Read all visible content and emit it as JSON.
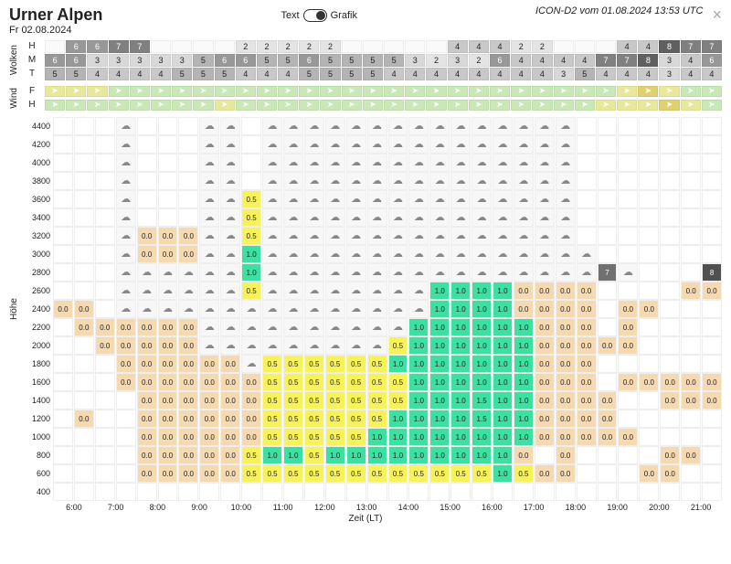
{
  "title": "Urner Alpen",
  "date": "Fr 02.08.2024",
  "mode": {
    "text_label": "Text",
    "grafik_label": "Grafik"
  },
  "source": "ICON-D2 vom 01.08.2024 13:53 UTC",
  "sections": {
    "wolken": "Wolken",
    "wind": "Wind",
    "hoehe": "Höhe"
  },
  "axis": {
    "x_title": "Zeit (LT)"
  },
  "n_time_cols": 32,
  "cloud_grey_shades": [
    "#fafafa",
    "#f0f0f0",
    "#e4e4e4",
    "#d8d8d8",
    "#c8c8c8",
    "#b4b4b4",
    "#989898",
    "#808080",
    "#606060"
  ],
  "cloud_rows": [
    {
      "label": "H",
      "vals": [
        "",
        "6",
        "6",
        "7",
        "7",
        "",
        "",
        "",
        "",
        "2",
        "2",
        "2",
        "2",
        "2",
        "",
        "",
        "",
        "",
        "",
        "4",
        "4",
        "4",
        "2",
        "2",
        "",
        "",
        "",
        "4",
        "4",
        "8",
        "7",
        "7"
      ]
    },
    {
      "label": "M",
      "vals": [
        "6",
        "6",
        "3",
        "3",
        "3",
        "3",
        "3",
        "5",
        "6",
        "6",
        "5",
        "5",
        "6",
        "5",
        "5",
        "5",
        "5",
        "3",
        "2",
        "3",
        "2",
        "6",
        "4",
        "4",
        "4",
        "4",
        "7",
        "7",
        "8",
        "3",
        "4",
        "6"
      ]
    },
    {
      "label": "T",
      "vals": [
        "5",
        "5",
        "4",
        "4",
        "4",
        "4",
        "5",
        "5",
        "5",
        "4",
        "4",
        "4",
        "5",
        "5",
        "5",
        "5",
        "4",
        "4",
        "4",
        "4",
        "4",
        "4",
        "4",
        "4",
        "3",
        "5",
        "4",
        "4",
        "4",
        "3",
        "4",
        "4"
      ]
    }
  ],
  "wind_colors": {
    "light": "#c9e8b5",
    "med": "#e8e89a",
    "strong": "#e0d070"
  },
  "wind_rows": [
    {
      "label": "F",
      "cells": [
        "med",
        "med",
        "med",
        "light",
        "light",
        "light",
        "light",
        "light",
        "light",
        "light",
        "light",
        "light",
        "light",
        "light",
        "light",
        "light",
        "light",
        "light",
        "light",
        "light",
        "light",
        "light",
        "light",
        "light",
        "light",
        "light",
        "light",
        "med",
        "strong",
        "med",
        "light",
        "light"
      ]
    },
    {
      "label": "H",
      "cells": [
        "light",
        "light",
        "light",
        "light",
        "light",
        "light",
        "light",
        "light",
        "med",
        "light",
        "light",
        "light",
        "light",
        "light",
        "light",
        "light",
        "light",
        "light",
        "light",
        "light",
        "light",
        "light",
        "light",
        "light",
        "light",
        "light",
        "med",
        "med",
        "med",
        "strong",
        "med",
        "light"
      ]
    }
  ],
  "heights": [
    4400,
    4200,
    4000,
    3800,
    3600,
    3400,
    3200,
    3000,
    2800,
    2600,
    2400,
    2200,
    2000,
    1800,
    1600,
    1400,
    1200,
    1000,
    800,
    600,
    400
  ],
  "x_hours": [
    "6:00",
    "7:00",
    "8:00",
    "9:00",
    "10:00",
    "11:00",
    "12:00",
    "13:00",
    "14:00",
    "15:00",
    "16:00",
    "17:00",
    "18:00",
    "19:00",
    "20:00",
    "21:00"
  ],
  "colors": {
    "beige": "#f5d9b0",
    "yellow": "#f7f25a",
    "green": "#3ce0a0",
    "grey_dark": "#707070",
    "grey_darker": "#505050",
    "white": "#ffffff",
    "cloud": "#f7f7f7"
  },
  "grid": [
    [
      " ",
      " ",
      " ",
      "C",
      " ",
      " ",
      " ",
      "C",
      "C",
      " ",
      "C",
      "C",
      "C",
      "C",
      "C",
      "C",
      "C",
      "C",
      "C",
      "C",
      "C",
      "C",
      "C",
      "C",
      "C",
      " ",
      " ",
      " ",
      " ",
      " ",
      " ",
      " "
    ],
    [
      " ",
      " ",
      " ",
      "C",
      " ",
      " ",
      " ",
      "C",
      "C",
      " ",
      "C",
      "C",
      "C",
      "C",
      "C",
      "C",
      "C",
      "C",
      "C",
      "C",
      "C",
      "C",
      "C",
      "C",
      "C",
      " ",
      " ",
      " ",
      " ",
      " ",
      " ",
      " "
    ],
    [
      " ",
      " ",
      " ",
      "C",
      " ",
      " ",
      " ",
      "C",
      "C",
      " ",
      "C",
      "C",
      "C",
      "C",
      "C",
      "C",
      "C",
      "C",
      "C",
      "C",
      "C",
      "C",
      "C",
      "C",
      "C",
      " ",
      " ",
      " ",
      " ",
      " ",
      " ",
      " "
    ],
    [
      " ",
      " ",
      " ",
      "C",
      " ",
      " ",
      " ",
      "C",
      "C",
      " ",
      "C",
      "C",
      "C",
      "C",
      "C",
      "C",
      "C",
      "C",
      "C",
      "C",
      "C",
      "C",
      "C",
      "C",
      "C",
      " ",
      " ",
      " ",
      " ",
      " ",
      " ",
      " "
    ],
    [
      " ",
      " ",
      " ",
      "C",
      " ",
      " ",
      " ",
      "C",
      "C",
      "y0.5",
      "C",
      "C",
      "C",
      "C",
      "C",
      "C",
      "C",
      "C",
      "C",
      "C",
      "C",
      "C",
      "C",
      "C",
      "C",
      " ",
      " ",
      " ",
      " ",
      " ",
      " ",
      " "
    ],
    [
      " ",
      " ",
      " ",
      "C",
      " ",
      " ",
      " ",
      "C",
      "C",
      "y0.5",
      "C",
      "C",
      "C",
      "C",
      "C",
      "C",
      "C",
      "C",
      "C",
      "C",
      "C",
      "C",
      "C",
      "C",
      "C",
      " ",
      " ",
      " ",
      " ",
      " ",
      " ",
      " "
    ],
    [
      " ",
      " ",
      " ",
      "C",
      "b0.0",
      "b0.0",
      "b0.0",
      "C",
      "C",
      "y0.5",
      "C",
      "C",
      "C",
      "C",
      "C",
      "C",
      "C",
      "C",
      "C",
      "C",
      "C",
      "C",
      "C",
      "C",
      "C",
      " ",
      " ",
      " ",
      " ",
      " ",
      " ",
      " "
    ],
    [
      " ",
      " ",
      " ",
      "C",
      "b0.0",
      "b0.0",
      "b0.0",
      "C",
      "C",
      "g1.0",
      "C",
      "C",
      "C",
      "C",
      "C",
      "C",
      "C",
      "C",
      "C",
      "C",
      "C",
      "C",
      "C",
      "C",
      "C",
      "C",
      " ",
      " ",
      " ",
      " ",
      " ",
      " "
    ],
    [
      " ",
      " ",
      " ",
      "C",
      "C",
      "C",
      "C",
      "C",
      "C",
      "g1.0",
      "C",
      "C",
      "C",
      "C",
      "C",
      "C",
      "C",
      "C",
      "C",
      "C",
      "C",
      "C",
      "C",
      "C",
      "C",
      "C",
      "d7",
      "C",
      " ",
      " ",
      " ",
      "D8"
    ],
    [
      " ",
      " ",
      " ",
      "C",
      "C",
      "C",
      "C",
      "C",
      "C",
      "y0.5",
      "C",
      "C",
      "C",
      "C",
      "C",
      "C",
      "C",
      "C",
      "g1.0",
      "g1.0",
      "g1.0",
      "g1.0",
      "b0.0",
      "b0.0",
      "b0.0",
      "b0.0",
      " ",
      " ",
      " ",
      " ",
      "b0.0",
      "b0.0"
    ],
    [
      "b0.0",
      "b0.0",
      " ",
      "C",
      "C",
      "C",
      "C",
      "C",
      "C",
      "C",
      "C",
      "C",
      "C",
      "C",
      "C",
      "C",
      "C",
      "C",
      "g1.0",
      "g1.0",
      "g1.0",
      "g1.0",
      "b0.0",
      "b0.0",
      "b0.0",
      "b0.0",
      " ",
      "b0.0",
      "b0.0",
      " ",
      " ",
      " "
    ],
    [
      " ",
      "b0.0",
      "b0.0",
      "b0.0",
      "b0.0",
      "b0.0",
      "b0.0",
      "C",
      "C",
      "C",
      "C",
      "C",
      "C",
      "C",
      "C",
      "C",
      "C",
      "g1.0",
      "g1.0",
      "g1.0",
      "g1.0",
      "g1.0",
      "g1.0",
      "b0.0",
      "b0.0",
      "b0.0",
      " ",
      "b0.0",
      " ",
      " ",
      " ",
      " "
    ],
    [
      " ",
      " ",
      "b0.0",
      "b0.0",
      "b0.0",
      "b0.0",
      "b0.0",
      "C",
      "C",
      "C",
      "C",
      "C",
      "C",
      "C",
      "C",
      "C",
      "y0.5",
      "g1.0",
      "g1.0",
      "g1.0",
      "g1.0",
      "g1.0",
      "g1.0",
      "b0.0",
      "b0.0",
      "b0.0",
      "b0.0",
      "b0.0",
      " ",
      " ",
      " ",
      " "
    ],
    [
      " ",
      " ",
      " ",
      "b0.0",
      "b0.0",
      "b0.0",
      "b0.0",
      "b0.0",
      "b0.0",
      "C",
      "y0.5",
      "y0.5",
      "y0.5",
      "y0.5",
      "y0.5",
      "y0.5",
      "g1.0",
      "g1.0",
      "g1.0",
      "g1.0",
      "g1.0",
      "g1.0",
      "g1.0",
      "b0.0",
      "b0.0",
      "b0.0",
      " ",
      " ",
      " ",
      " ",
      " ",
      " "
    ],
    [
      " ",
      " ",
      " ",
      "b0.0",
      "b0.0",
      "b0.0",
      "b0.0",
      "b0.0",
      "b0.0",
      "b0.0",
      "y0.5",
      "y0.5",
      "y0.5",
      "y0.5",
      "y0.5",
      "y0.5",
      "y0.5",
      "g1.0",
      "g1.0",
      "g1.0",
      "g1.0",
      "g1.0",
      "g1.0",
      "b0.0",
      "b0.0",
      "b0.0",
      " ",
      "b0.0",
      "b0.0",
      "b0.0",
      "b0.0",
      "b0.0"
    ],
    [
      " ",
      " ",
      " ",
      " ",
      "b0.0",
      "b0.0",
      "b0.0",
      "b0.0",
      "b0.0",
      "b0.0",
      "y0.5",
      "y0.5",
      "y0.5",
      "y0.5",
      "y0.5",
      "y0.5",
      "y0.5",
      "g1.0",
      "g1.0",
      "g1.0",
      "g1.5",
      "g1.0",
      "g1.0",
      "b0.0",
      "b0.0",
      "b0.0",
      "b0.0",
      " ",
      " ",
      "b0.0",
      "b0.0",
      "b0.0"
    ],
    [
      " ",
      "b0.0",
      " ",
      " ",
      "b0.0",
      "b0.0",
      "b0.0",
      "b0.0",
      "b0.0",
      "b0.0",
      "y0.5",
      "y0.5",
      "y0.5",
      "y0.5",
      "y0.5",
      "y0.5",
      "g1.0",
      "g1.0",
      "g1.0",
      "g1.0",
      "g1.5",
      "g1.0",
      "g1.0",
      "b0.0",
      "b0.0",
      "b0.0",
      "b0.0",
      " ",
      " ",
      " ",
      " ",
      " "
    ],
    [
      " ",
      " ",
      " ",
      " ",
      "b0.0",
      "b0.0",
      "b0.0",
      "b0.0",
      "b0.0",
      "b0.0",
      "y0.5",
      "y0.5",
      "y0.5",
      "y0.5",
      "y0.5",
      "g1.0",
      "g1.0",
      "g1.0",
      "g1.0",
      "g1.0",
      "g1.0",
      "g1.0",
      "g1.0",
      "b0.0",
      "b0.0",
      "b0.0",
      "b0.0",
      "b0.0",
      " ",
      " ",
      " ",
      " "
    ],
    [
      " ",
      " ",
      " ",
      " ",
      "b0.0",
      "b0.0",
      "b0.0",
      "b0.0",
      "b0.0",
      "y0.5",
      "g1.0",
      "g1.0",
      "y0.5",
      "g1.0",
      "g1.0",
      "g1.0",
      "g1.0",
      "g1.0",
      "g1.0",
      "g1.0",
      "g1.0",
      "g1.0",
      "b0.0",
      " ",
      "b0.0",
      " ",
      " ",
      " ",
      " ",
      "b0.0",
      "b0.0",
      " "
    ],
    [
      " ",
      " ",
      " ",
      " ",
      "b0.0",
      "b0.0",
      "b0.0",
      "b0.0",
      "b0.0",
      "y0.5",
      "y0.5",
      "y0.5",
      "y0.5",
      "y0.5",
      "y0.5",
      "y0.5",
      "y0.5",
      "y0.5",
      "y0.5",
      "y0.5",
      "y0.5",
      "g1.0",
      "y0.5",
      "b0.0",
      "b0.0",
      " ",
      " ",
      " ",
      "b0.0",
      "b0.0",
      " ",
      " "
    ],
    [
      " ",
      " ",
      " ",
      " ",
      " ",
      " ",
      " ",
      " ",
      " ",
      " ",
      " ",
      " ",
      " ",
      " ",
      " ",
      " ",
      " ",
      " ",
      " ",
      " ",
      " ",
      " ",
      " ",
      " ",
      " ",
      " ",
      " ",
      " ",
      " ",
      " ",
      " ",
      " "
    ]
  ]
}
